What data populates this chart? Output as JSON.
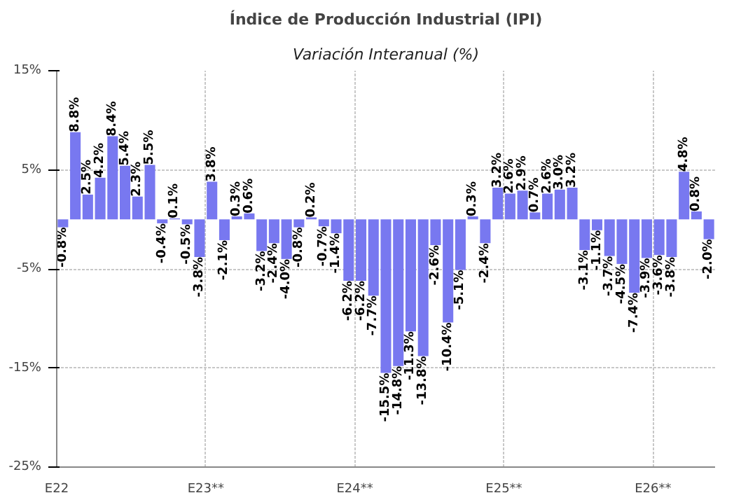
{
  "chart_data": {
    "type": "bar",
    "title": "Índice de Producción Industrial (IPI)",
    "subtitle": "Variación Interanual (%)",
    "categories": [
      "E22",
      null,
      null,
      null,
      null,
      null,
      null,
      null,
      null,
      null,
      null,
      null,
      "E23**",
      null,
      null,
      null,
      null,
      null,
      null,
      null,
      null,
      null,
      null,
      null,
      "E24**",
      null,
      null,
      null,
      null,
      null,
      null,
      null,
      null,
      null,
      null,
      null,
      "E25**",
      null,
      null,
      null,
      null,
      null,
      null,
      null,
      null,
      null,
      null,
      null,
      "E26**",
      null,
      null,
      null,
      null
    ],
    "values": [
      -0.8,
      8.8,
      2.5,
      4.2,
      8.4,
      5.4,
      2.3,
      5.5,
      -0.4,
      0.1,
      -0.5,
      -3.8,
      3.8,
      -2.1,
      0.3,
      0.6,
      -3.2,
      -2.4,
      -4.0,
      -0.8,
      0.2,
      -0.7,
      -1.4,
      -6.2,
      -6.2,
      -7.7,
      -15.5,
      -14.8,
      -11.3,
      -13.8,
      -2.6,
      -10.4,
      -5.1,
      0.3,
      -2.4,
      3.2,
      2.6,
      2.9,
      0.7,
      2.6,
      3.0,
      3.2,
      -3.1,
      -1.1,
      -3.7,
      -4.5,
      -7.4,
      -3.9,
      -3.6,
      -3.8,
      4.8,
      0.8,
      -2.0
    ],
    "value_labels": [
      "-0.8%",
      "8.8%",
      "2.5%",
      "4.2%",
      "8.4%",
      "5.4%",
      "2.3%",
      "5.5%",
      "-0.4%",
      "0.1%",
      "-0.5%",
      "-3.8%",
      "3.8%",
      "-2.1%",
      "0.3%",
      "0.6%",
      "-3.2%",
      "-2.4%",
      "-4.0%",
      "-0.8%",
      "0.2%",
      "-0.7%",
      "-1.4%",
      "-6.2%",
      "-6.2%",
      "-7.7%",
      "-15.5%",
      "-14.8%",
      "-11.3%",
      "-13.8%",
      "-2.6%",
      "-10.4%",
      "-5.1%",
      "0.3%",
      "-2.4%",
      "3.2%",
      "2.6%",
      "2.9%",
      "0.7%",
      "2.6%",
      "3.0%",
      "3.2%",
      "-3.1%",
      "-1.1%",
      "-3.7%",
      "-4.5%",
      "-7.4%",
      "-3.9%",
      "-3.6%",
      "-3.8%",
      "4.8%",
      "0.8%",
      "-2.0%"
    ],
    "color": "#7878f0",
    "ylim": [
      -25,
      15
    ],
    "yticks": [
      {
        "value": -25,
        "label": "-25%"
      },
      {
        "value": -15,
        "label": "-15%"
      },
      {
        "value": -5,
        "label": "-5%"
      },
      {
        "value": 5,
        "label": "5%"
      },
      {
        "value": 15,
        "label": "15%"
      }
    ],
    "grid": true
  }
}
